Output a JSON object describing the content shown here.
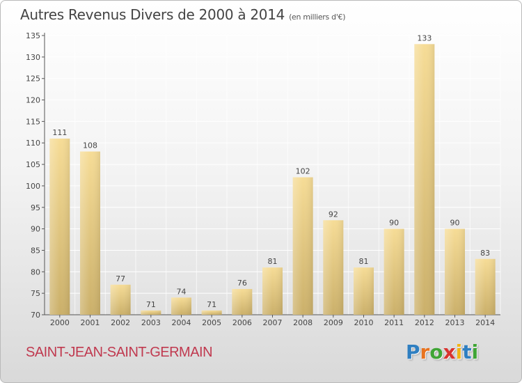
{
  "title": "Autres Revenus Divers de 2000 à 2014",
  "subtitle": "(en milliers d'€)",
  "commune": "SAINT-JEAN-SAINT-GERMAIN",
  "logo": {
    "text": "Proxiti",
    "letters": [
      {
        "char": "P",
        "color": "#2f7fc1"
      },
      {
        "char": "r",
        "color": "#e8731f"
      },
      {
        "char": "o",
        "color": "#3fa535"
      },
      {
        "char": "x",
        "color": "#d9332f"
      },
      {
        "char": "i",
        "color": "#f2b414"
      },
      {
        "char": "t",
        "color": "#2f7fc1"
      },
      {
        "char": "i",
        "color": "#3fa535"
      }
    ]
  },
  "colors": {
    "bar_light": "#f6dc96",
    "bar_dark": "#cbb06a",
    "commune": "#c0394f",
    "grid": "#ffffff",
    "text": "#444444"
  },
  "chart_data": {
    "type": "bar",
    "title": "Autres Revenus Divers de 2000 à 2014",
    "subtitle": "(en milliers d'€)",
    "categories": [
      "2000",
      "2001",
      "2002",
      "2003",
      "2004",
      "2005",
      "2006",
      "2007",
      "2008",
      "2009",
      "2010",
      "2011",
      "2012",
      "2013",
      "2014"
    ],
    "values": [
      111,
      108,
      77,
      71,
      74,
      71,
      76,
      81,
      102,
      92,
      81,
      90,
      133,
      90,
      83
    ],
    "ylim": [
      70,
      135
    ],
    "yticks": [
      70,
      75,
      80,
      85,
      90,
      95,
      100,
      105,
      110,
      115,
      120,
      125,
      130,
      135
    ],
    "grid": true,
    "data_labels": true
  }
}
